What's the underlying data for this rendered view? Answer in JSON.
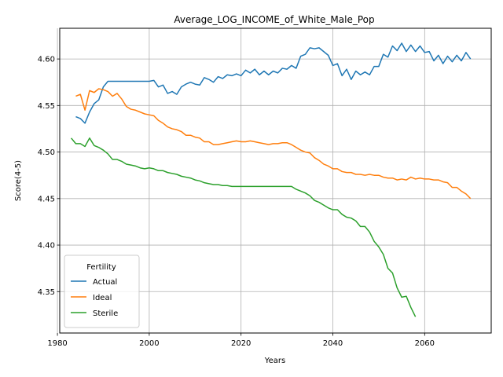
{
  "chart_data": {
    "type": "line",
    "title": "Average_LOG_INCOME_of_White_Male_Pop",
    "xlabel": "Years",
    "ylabel": "Score(4-5)",
    "xlim": [
      1980.5,
      2074.5
    ],
    "ylim": [
      4.3055,
      4.633
    ],
    "x_ticks": [
      1980,
      2000,
      2020,
      2040,
      2060
    ],
    "y_ticks": [
      4.35,
      4.4,
      4.45,
      4.5,
      4.55,
      4.6
    ],
    "y_tick_labels": [
      "4.35",
      "4.40",
      "4.45",
      "4.50",
      "4.55",
      "4.60"
    ],
    "grid": true,
    "legend": {
      "title": "Fertility",
      "placement": "lower-left"
    },
    "series": [
      {
        "name": "Actual",
        "color": "#1f77b4",
        "x": [
          1984,
          1985,
          1986,
          1987,
          1988,
          1989,
          1990,
          1991,
          1992,
          1993,
          1994,
          1995,
          1996,
          1997,
          1998,
          1999,
          2000,
          2001,
          2002,
          2003,
          2004,
          2005,
          2006,
          2007,
          2008,
          2009,
          2010,
          2011,
          2012,
          2013,
          2014,
          2015,
          2016,
          2017,
          2018,
          2019,
          2020,
          2021,
          2022,
          2023,
          2024,
          2025,
          2026,
          2027,
          2028,
          2029,
          2030,
          2031,
          2032,
          2033,
          2034,
          2035,
          2036,
          2037,
          2038,
          2039,
          2040,
          2041,
          2042,
          2043,
          2044,
          2045,
          2046,
          2047,
          2048,
          2049,
          2050,
          2051,
          2052,
          2053,
          2054,
          2055,
          2056,
          2057,
          2058,
          2059,
          2060,
          2061,
          2062,
          2063,
          2064,
          2065,
          2066,
          2067,
          2068,
          2069,
          2070
        ],
        "values": [
          4.538,
          4.536,
          4.531,
          4.543,
          4.552,
          4.556,
          4.57,
          4.576,
          4.576,
          4.576,
          4.576,
          4.576,
          4.576,
          4.576,
          4.576,
          4.576,
          4.576,
          4.577,
          4.57,
          4.572,
          4.563,
          4.565,
          4.562,
          4.57,
          4.573,
          4.575,
          4.573,
          4.572,
          4.58,
          4.578,
          4.575,
          4.581,
          4.579,
          4.583,
          4.582,
          4.584,
          4.582,
          4.588,
          4.585,
          4.589,
          4.583,
          4.587,
          4.583,
          4.587,
          4.585,
          4.59,
          4.589,
          4.593,
          4.59,
          4.603,
          4.605,
          4.612,
          4.611,
          4.612,
          4.608,
          4.604,
          4.593,
          4.595,
          4.582,
          4.589,
          4.578,
          4.587,
          4.583,
          4.586,
          4.583,
          4.592,
          4.592,
          4.605,
          4.602,
          4.614,
          4.609,
          4.617,
          4.608,
          4.615,
          4.608,
          4.614,
          4.607,
          4.608,
          4.598,
          4.604,
          4.595,
          4.603,
          4.597,
          4.604,
          4.598,
          4.607,
          4.6
        ]
      },
      {
        "name": "Ideal",
        "color": "#ff7f0e",
        "x": [
          1984,
          1985,
          1986,
          1987,
          1988,
          1989,
          1990,
          1991,
          1992,
          1993,
          1994,
          1995,
          1996,
          1997,
          1998,
          1999,
          2000,
          2001,
          2002,
          2003,
          2004,
          2005,
          2006,
          2007,
          2008,
          2009,
          2010,
          2011,
          2012,
          2013,
          2014,
          2015,
          2016,
          2017,
          2018,
          2019,
          2020,
          2021,
          2022,
          2023,
          2024,
          2025,
          2026,
          2027,
          2028,
          2029,
          2030,
          2031,
          2032,
          2033,
          2034,
          2035,
          2036,
          2037,
          2038,
          2039,
          2040,
          2041,
          2042,
          2043,
          2044,
          2045,
          2046,
          2047,
          2048,
          2049,
          2050,
          2051,
          2052,
          2053,
          2054,
          2055,
          2056,
          2057,
          2058,
          2059,
          2060,
          2061,
          2062,
          2063,
          2064,
          2065,
          2066,
          2067,
          2068,
          2069,
          2070
        ],
        "values": [
          4.56,
          4.562,
          4.545,
          4.566,
          4.564,
          4.568,
          4.567,
          4.565,
          4.56,
          4.563,
          4.557,
          4.549,
          4.546,
          4.545,
          4.543,
          4.541,
          4.54,
          4.539,
          4.534,
          4.531,
          4.527,
          4.525,
          4.524,
          4.522,
          4.518,
          4.518,
          4.516,
          4.515,
          4.511,
          4.511,
          4.508,
          4.508,
          4.509,
          4.51,
          4.511,
          4.512,
          4.511,
          4.511,
          4.512,
          4.511,
          4.51,
          4.509,
          4.508,
          4.509,
          4.509,
          4.51,
          4.51,
          4.508,
          4.505,
          4.502,
          4.5,
          4.499,
          4.494,
          4.491,
          4.487,
          4.485,
          4.482,
          4.482,
          4.479,
          4.478,
          4.478,
          4.476,
          4.476,
          4.475,
          4.476,
          4.475,
          4.475,
          4.473,
          4.472,
          4.472,
          4.47,
          4.471,
          4.47,
          4.473,
          4.471,
          4.472,
          4.471,
          4.471,
          4.47,
          4.47,
          4.468,
          4.467,
          4.462,
          4.462,
          4.458,
          4.455,
          4.45
        ]
      },
      {
        "name": "Sterile",
        "color": "#2ca02c",
        "x": [
          1983,
          1984,
          1985,
          1986,
          1987,
          1988,
          1989,
          1990,
          1991,
          1992,
          1993,
          1994,
          1995,
          1996,
          1997,
          1998,
          1999,
          2000,
          2001,
          2002,
          2003,
          2004,
          2005,
          2006,
          2007,
          2008,
          2009,
          2010,
          2011,
          2012,
          2013,
          2014,
          2015,
          2016,
          2017,
          2018,
          2019,
          2020,
          2021,
          2022,
          2023,
          2024,
          2025,
          2026,
          2027,
          2028,
          2029,
          2030,
          2031,
          2032,
          2033,
          2034,
          2035,
          2036,
          2037,
          2038,
          2039,
          2040,
          2041,
          2042,
          2043,
          2044,
          2045,
          2046,
          2047,
          2048,
          2049,
          2050,
          2051,
          2052,
          2053,
          2054,
          2055,
          2056,
          2057,
          2058
        ],
        "values": [
          4.515,
          4.509,
          4.509,
          4.506,
          4.515,
          4.507,
          4.505,
          4.502,
          4.498,
          4.492,
          4.492,
          4.49,
          4.487,
          4.486,
          4.485,
          4.483,
          4.482,
          4.483,
          4.482,
          4.48,
          4.48,
          4.478,
          4.477,
          4.476,
          4.474,
          4.473,
          4.472,
          4.47,
          4.469,
          4.467,
          4.466,
          4.465,
          4.465,
          4.464,
          4.464,
          4.463,
          4.463,
          4.463,
          4.463,
          4.463,
          4.463,
          4.463,
          4.463,
          4.463,
          4.463,
          4.463,
          4.463,
          4.463,
          4.463,
          4.46,
          4.458,
          4.456,
          4.453,
          4.448,
          4.446,
          4.443,
          4.44,
          4.438,
          4.438,
          4.433,
          4.43,
          4.429,
          4.426,
          4.42,
          4.42,
          4.414,
          4.404,
          4.398,
          4.39,
          4.375,
          4.37,
          4.354,
          4.344,
          4.345,
          4.333,
          4.323
        ]
      }
    ]
  }
}
